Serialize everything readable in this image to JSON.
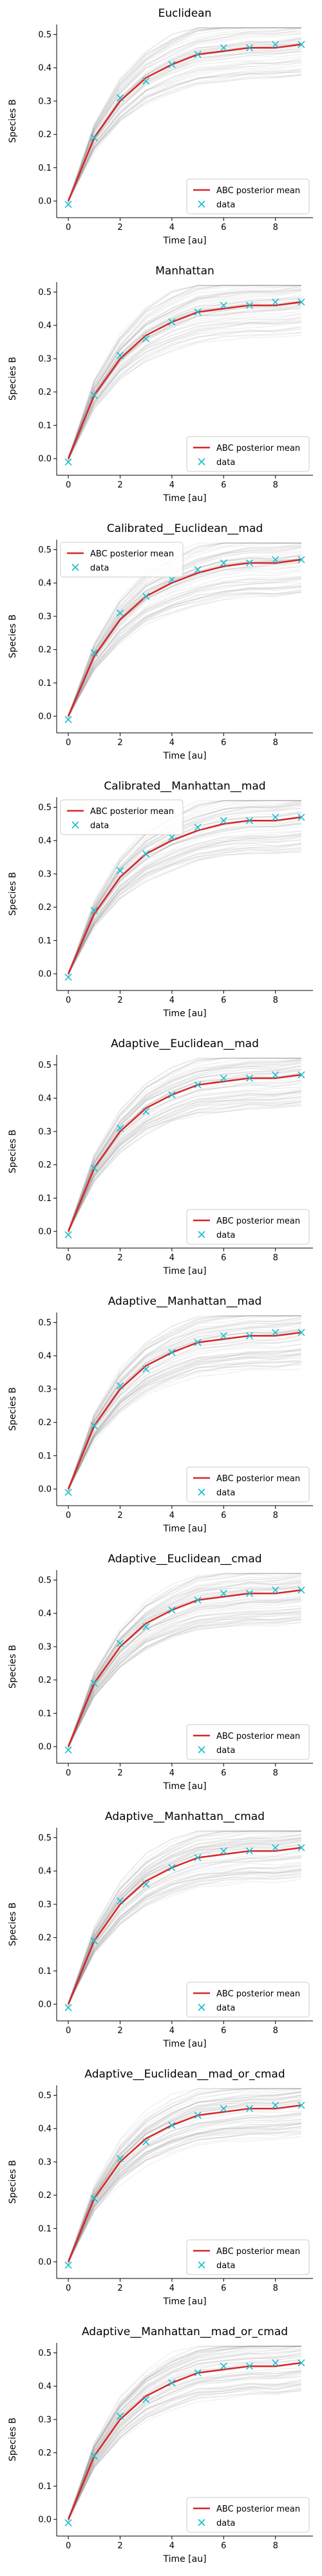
{
  "figure": {
    "colors": {
      "posterior_mean": "#d62728",
      "samples": "#8c8c8c",
      "data": "#17becf",
      "axis": "#000000"
    }
  },
  "chart_data": [
    {
      "type": "line",
      "title": "Euclidean",
      "xlabel": "Time [au]",
      "ylabel": "Species B",
      "xlim": [
        -0.45,
        9.45
      ],
      "ylim": [
        -0.05,
        0.53
      ],
      "xticks": [
        "0",
        "2",
        "4",
        "6",
        "8"
      ],
      "yticks": [
        "0.0",
        "0.1",
        "0.2",
        "0.3",
        "0.4",
        "0.5"
      ],
      "legend": {
        "position": "lower-right",
        "entries": [
          "ABC posterior mean",
          "data"
        ]
      },
      "x": [
        0,
        1,
        2,
        3,
        4,
        5,
        6,
        7,
        8,
        9
      ],
      "series": [
        {
          "name": "ABC posterior mean",
          "values": [
            0.0,
            0.19,
            0.3,
            0.37,
            0.41,
            0.44,
            0.45,
            0.46,
            0.46,
            0.47
          ]
        },
        {
          "name": "data",
          "values": [
            -0.01,
            0.19,
            0.31,
            0.36,
            0.41,
            0.44,
            0.46,
            0.46,
            0.47,
            0.47
          ]
        }
      ]
    },
    {
      "type": "line",
      "title": "Manhattan",
      "xlabel": "Time [au]",
      "ylabel": "Species B",
      "xlim": [
        -0.45,
        9.45
      ],
      "ylim": [
        -0.05,
        0.53
      ],
      "xticks": [
        "0",
        "2",
        "4",
        "6",
        "8"
      ],
      "yticks": [
        "0.0",
        "0.1",
        "0.2",
        "0.3",
        "0.4",
        "0.5"
      ],
      "legend": {
        "position": "lower-right",
        "entries": [
          "ABC posterior mean",
          "data"
        ]
      },
      "x": [
        0,
        1,
        2,
        3,
        4,
        5,
        6,
        7,
        8,
        9
      ],
      "series": [
        {
          "name": "ABC posterior mean",
          "values": [
            0.0,
            0.19,
            0.3,
            0.37,
            0.41,
            0.44,
            0.45,
            0.46,
            0.46,
            0.47
          ]
        },
        {
          "name": "data",
          "values": [
            -0.01,
            0.19,
            0.31,
            0.36,
            0.41,
            0.44,
            0.46,
            0.46,
            0.47,
            0.47
          ]
        }
      ]
    },
    {
      "type": "line",
      "title": "Calibrated__Euclidean__mad",
      "xlabel": "Time [au]",
      "ylabel": "Species B",
      "xlim": [
        -0.45,
        9.45
      ],
      "ylim": [
        -0.05,
        0.53
      ],
      "xticks": [
        "0",
        "2",
        "4",
        "6",
        "8"
      ],
      "yticks": [
        "0.0",
        "0.1",
        "0.2",
        "0.3",
        "0.4",
        "0.5"
      ],
      "legend": {
        "position": "upper-left",
        "entries": [
          "ABC posterior mean",
          "data"
        ]
      },
      "x": [
        0,
        1,
        2,
        3,
        4,
        5,
        6,
        7,
        8,
        9
      ],
      "series": [
        {
          "name": "ABC posterior mean",
          "values": [
            0.0,
            0.18,
            0.29,
            0.36,
            0.4,
            0.43,
            0.45,
            0.46,
            0.46,
            0.47
          ]
        },
        {
          "name": "data",
          "values": [
            -0.01,
            0.19,
            0.31,
            0.36,
            0.41,
            0.44,
            0.46,
            0.46,
            0.47,
            0.47
          ]
        }
      ]
    },
    {
      "type": "line",
      "title": "Calibrated__Manhattan__mad",
      "xlabel": "Time [au]",
      "ylabel": "Species B",
      "xlim": [
        -0.45,
        9.45
      ],
      "ylim": [
        -0.05,
        0.53
      ],
      "xticks": [
        "0",
        "2",
        "4",
        "6",
        "8"
      ],
      "yticks": [
        "0.0",
        "0.1",
        "0.2",
        "0.3",
        "0.4",
        "0.5"
      ],
      "legend": {
        "position": "upper-left",
        "entries": [
          "ABC posterior mean",
          "data"
        ]
      },
      "x": [
        0,
        1,
        2,
        3,
        4,
        5,
        6,
        7,
        8,
        9
      ],
      "series": [
        {
          "name": "ABC posterior mean",
          "values": [
            0.0,
            0.18,
            0.29,
            0.36,
            0.4,
            0.43,
            0.45,
            0.46,
            0.46,
            0.47
          ]
        },
        {
          "name": "data",
          "values": [
            -0.01,
            0.19,
            0.31,
            0.36,
            0.41,
            0.44,
            0.46,
            0.46,
            0.47,
            0.47
          ]
        }
      ]
    },
    {
      "type": "line",
      "title": "Adaptive__Euclidean__mad",
      "xlabel": "Time [au]",
      "ylabel": "Species B",
      "xlim": [
        -0.45,
        9.45
      ],
      "ylim": [
        -0.05,
        0.53
      ],
      "xticks": [
        "0",
        "2",
        "4",
        "6",
        "8"
      ],
      "yticks": [
        "0.0",
        "0.1",
        "0.2",
        "0.3",
        "0.4",
        "0.5"
      ],
      "legend": {
        "position": "lower-right",
        "entries": [
          "ABC posterior mean",
          "data"
        ]
      },
      "x": [
        0,
        1,
        2,
        3,
        4,
        5,
        6,
        7,
        8,
        9
      ],
      "series": [
        {
          "name": "ABC posterior mean",
          "values": [
            0.0,
            0.19,
            0.3,
            0.37,
            0.41,
            0.44,
            0.45,
            0.46,
            0.46,
            0.47
          ]
        },
        {
          "name": "data",
          "values": [
            -0.01,
            0.19,
            0.31,
            0.36,
            0.41,
            0.44,
            0.46,
            0.46,
            0.47,
            0.47
          ]
        }
      ]
    },
    {
      "type": "line",
      "title": "Adaptive__Manhattan__mad",
      "xlabel": "Time [au]",
      "ylabel": "Species B",
      "xlim": [
        -0.45,
        9.45
      ],
      "ylim": [
        -0.05,
        0.53
      ],
      "xticks": [
        "0",
        "2",
        "4",
        "6",
        "8"
      ],
      "yticks": [
        "0.0",
        "0.1",
        "0.2",
        "0.3",
        "0.4",
        "0.5"
      ],
      "legend": {
        "position": "lower-right",
        "entries": [
          "ABC posterior mean",
          "data"
        ]
      },
      "x": [
        0,
        1,
        2,
        3,
        4,
        5,
        6,
        7,
        8,
        9
      ],
      "series": [
        {
          "name": "ABC posterior mean",
          "values": [
            0.0,
            0.19,
            0.3,
            0.37,
            0.41,
            0.44,
            0.45,
            0.46,
            0.46,
            0.47
          ]
        },
        {
          "name": "data",
          "values": [
            -0.01,
            0.19,
            0.31,
            0.36,
            0.41,
            0.44,
            0.46,
            0.46,
            0.47,
            0.47
          ]
        }
      ]
    },
    {
      "type": "line",
      "title": "Adaptive__Euclidean__cmad",
      "xlabel": "Time [au]",
      "ylabel": "Species B",
      "xlim": [
        -0.45,
        9.45
      ],
      "ylim": [
        -0.05,
        0.53
      ],
      "xticks": [
        "0",
        "2",
        "4",
        "6",
        "8"
      ],
      "yticks": [
        "0.0",
        "0.1",
        "0.2",
        "0.3",
        "0.4",
        "0.5"
      ],
      "legend": {
        "position": "lower-right",
        "entries": [
          "ABC posterior mean",
          "data"
        ]
      },
      "x": [
        0,
        1,
        2,
        3,
        4,
        5,
        6,
        7,
        8,
        9
      ],
      "series": [
        {
          "name": "ABC posterior mean",
          "values": [
            0.0,
            0.19,
            0.3,
            0.37,
            0.41,
            0.44,
            0.45,
            0.46,
            0.46,
            0.47
          ]
        },
        {
          "name": "data",
          "values": [
            -0.01,
            0.19,
            0.31,
            0.36,
            0.41,
            0.44,
            0.46,
            0.46,
            0.47,
            0.47
          ]
        }
      ]
    },
    {
      "type": "line",
      "title": "Adaptive__Manhattan__cmad",
      "xlabel": "Time [au]",
      "ylabel": "Species B",
      "xlim": [
        -0.45,
        9.45
      ],
      "ylim": [
        -0.05,
        0.53
      ],
      "xticks": [
        "0",
        "2",
        "4",
        "6",
        "8"
      ],
      "yticks": [
        "0.0",
        "0.1",
        "0.2",
        "0.3",
        "0.4",
        "0.5"
      ],
      "legend": {
        "position": "lower-right",
        "entries": [
          "ABC posterior mean",
          "data"
        ]
      },
      "x": [
        0,
        1,
        2,
        3,
        4,
        5,
        6,
        7,
        8,
        9
      ],
      "series": [
        {
          "name": "ABC posterior mean",
          "values": [
            0.0,
            0.19,
            0.3,
            0.37,
            0.41,
            0.44,
            0.45,
            0.46,
            0.46,
            0.47
          ]
        },
        {
          "name": "data",
          "values": [
            -0.01,
            0.19,
            0.31,
            0.36,
            0.41,
            0.44,
            0.46,
            0.46,
            0.47,
            0.47
          ]
        }
      ]
    },
    {
      "type": "line",
      "title": "Adaptive__Euclidean__mad_or_cmad",
      "xlabel": "Time [au]",
      "ylabel": "Species B",
      "xlim": [
        -0.45,
        9.45
      ],
      "ylim": [
        -0.05,
        0.53
      ],
      "xticks": [
        "0",
        "2",
        "4",
        "6",
        "8"
      ],
      "yticks": [
        "0.0",
        "0.1",
        "0.2",
        "0.3",
        "0.4",
        "0.5"
      ],
      "legend": {
        "position": "lower-right",
        "entries": [
          "ABC posterior mean",
          "data"
        ]
      },
      "x": [
        0,
        1,
        2,
        3,
        4,
        5,
        6,
        7,
        8,
        9
      ],
      "series": [
        {
          "name": "ABC posterior mean",
          "values": [
            0.0,
            0.19,
            0.3,
            0.37,
            0.41,
            0.44,
            0.45,
            0.46,
            0.46,
            0.47
          ]
        },
        {
          "name": "data",
          "values": [
            -0.01,
            0.19,
            0.31,
            0.36,
            0.41,
            0.44,
            0.46,
            0.46,
            0.47,
            0.47
          ]
        }
      ]
    },
    {
      "type": "line",
      "title": "Adaptive__Manhattan__mad_or_cmad",
      "xlabel": "Time [au]",
      "ylabel": "Species B",
      "xlim": [
        -0.45,
        9.45
      ],
      "ylim": [
        -0.05,
        0.53
      ],
      "xticks": [
        "0",
        "2",
        "4",
        "6",
        "8"
      ],
      "yticks": [
        "0.0",
        "0.1",
        "0.2",
        "0.3",
        "0.4",
        "0.5"
      ],
      "legend": {
        "position": "lower-right",
        "entries": [
          "ABC posterior mean",
          "data"
        ]
      },
      "x": [
        0,
        1,
        2,
        3,
        4,
        5,
        6,
        7,
        8,
        9
      ],
      "series": [
        {
          "name": "ABC posterior mean",
          "values": [
            0.0,
            0.19,
            0.3,
            0.37,
            0.41,
            0.44,
            0.45,
            0.46,
            0.46,
            0.47
          ]
        },
        {
          "name": "data",
          "values": [
            -0.01,
            0.19,
            0.31,
            0.36,
            0.41,
            0.44,
            0.46,
            0.46,
            0.47,
            0.47
          ]
        }
      ]
    }
  ]
}
